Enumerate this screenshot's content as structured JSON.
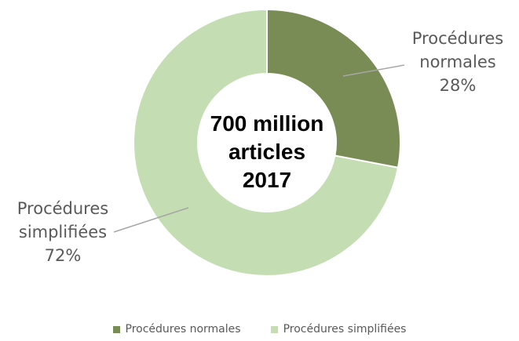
{
  "chart_data": {
    "type": "donut",
    "center_text": [
      "700 million",
      "articles",
      "2017"
    ],
    "slices": [
      {
        "name": "Procédures normales",
        "label_lines": [
          "Procédures",
          "normales"
        ],
        "percent_label": "28%",
        "value": 28,
        "color": "#7a8c55"
      },
      {
        "name": "Procédures simplifiées",
        "label_lines": [
          "Procédures",
          "simplifiées"
        ],
        "percent_label": "72%",
        "value": 72,
        "color": "#c4ddb2"
      }
    ],
    "legend_position": "bottom"
  }
}
